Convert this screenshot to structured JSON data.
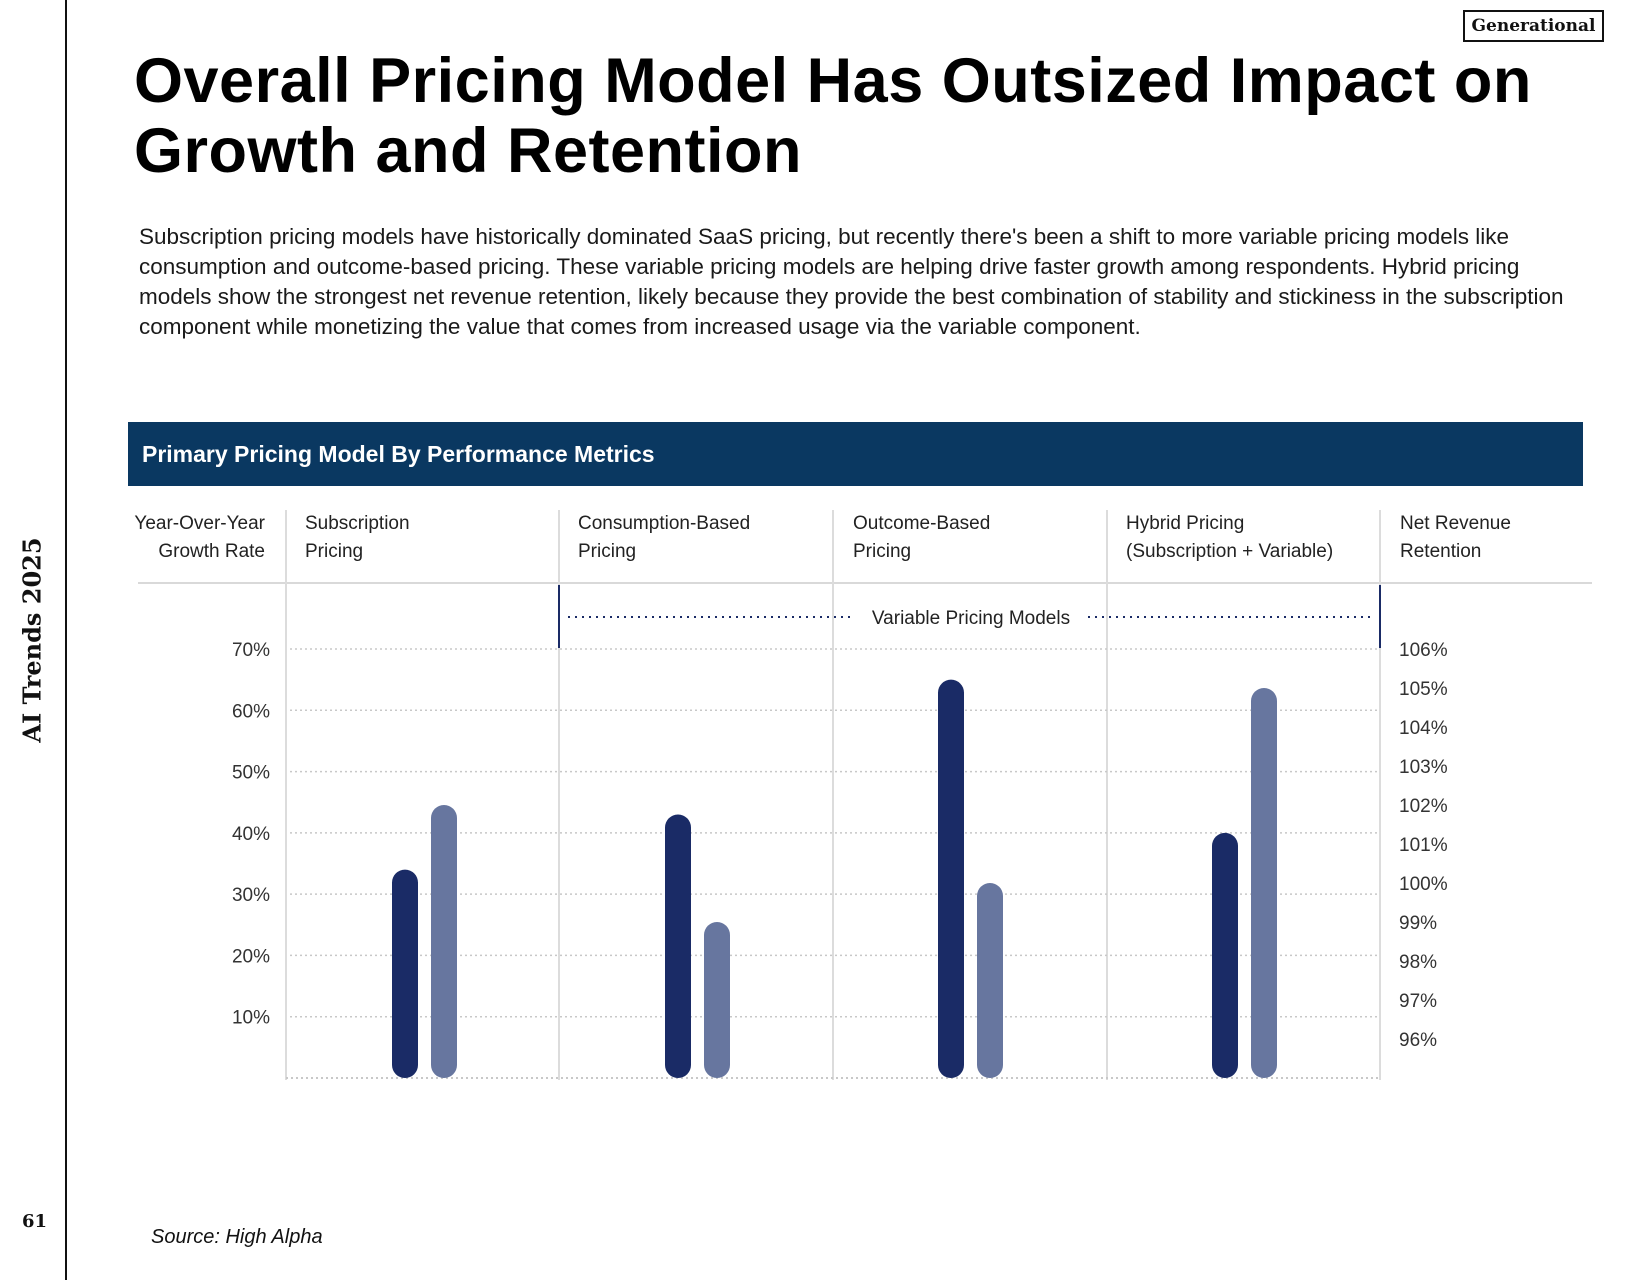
{
  "sidebar": {
    "label": "AI Trends 2025",
    "page_number": "61"
  },
  "header": {
    "title": "Overall Pricing Model Has Outsized Impact on Growth and Retention",
    "badge": "Generational"
  },
  "intro": "Subscription pricing models have historically dominated SaaS pricing, but recently there's been a shift to more variable pricing models like consumption and outcome-based pricing. These variable pricing models are helping drive faster growth among respondents. Hybrid pricing models show the strongest net revenue retention, likely because they provide the best combination of stability and stickiness in the subscription component while monetizing the value that comes from increased usage via the variable component.",
  "source": "Source: High Alpha",
  "colors": {
    "band": "#0a3861",
    "growth": "#1a2b66",
    "nrr": "#67769f"
  },
  "chart_data": {
    "type": "bar",
    "title": "Primary Pricing Model By Performance Metrics",
    "ylabel": "Year-Over-Year Growth Rate",
    "y2label": "Net Revenue Retention",
    "categories": [
      "Subscription Pricing",
      "Consumption-Based Pricing",
      "Outcome-Based Pricing",
      "Hybrid Pricing (Subscription + Variable)"
    ],
    "category_lines": [
      [
        "Subscription",
        "Pricing"
      ],
      [
        "Consumption-Based",
        "Pricing"
      ],
      [
        "Outcome-Based",
        "Pricing"
      ],
      [
        "Hybrid Pricing",
        "(Subscription + Variable)"
      ]
    ],
    "ylabel_lines": [
      "Year-Over-Year",
      "Growth Rate"
    ],
    "y2label_lines": [
      "Net Revenue",
      "Retention"
    ],
    "group_annotation": "Variable Pricing Models",
    "series": [
      {
        "name": "Year-Over-Year Growth Rate",
        "axis": "left",
        "values": [
          34,
          43,
          65,
          40
        ]
      },
      {
        "name": "Net Revenue Retention",
        "axis": "right",
        "values": [
          102,
          99,
          100,
          105
        ]
      }
    ],
    "ylim": [
      0,
      70
    ],
    "yticks": [
      "10%",
      "20%",
      "30%",
      "40%",
      "50%",
      "60%",
      "70%"
    ],
    "y2lim": [
      96,
      106
    ],
    "y2ticks": [
      "96%",
      "97%",
      "98%",
      "99%",
      "100%",
      "101%",
      "102%",
      "103%",
      "104%",
      "105%",
      "106%"
    ],
    "grid": true
  }
}
